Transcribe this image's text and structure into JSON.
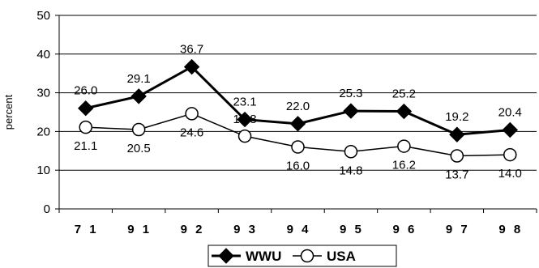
{
  "chart_data": {
    "type": "line",
    "title": "",
    "xlabel": "",
    "ylabel": "percent",
    "categories": [
      "7 1",
      "9 1",
      "9 2",
      "9 3",
      "9 4",
      "9 5",
      "9 6",
      "9 7",
      "9 8"
    ],
    "ylim": [
      0,
      50
    ],
    "yticks": [
      0,
      10,
      20,
      30,
      40,
      50
    ],
    "grid": true,
    "legend": "bottom",
    "series": [
      {
        "name": "WWU",
        "marker": "diamond-filled",
        "color": "#000000",
        "values": [
          26.0,
          29.1,
          36.7,
          23.1,
          22.0,
          25.3,
          25.2,
          19.2,
          20.4
        ],
        "labels": [
          "26.0",
          "29.1",
          "36.7",
          "23.1",
          "22.0",
          "25.3",
          "25.2",
          "19.2",
          "20.4"
        ]
      },
      {
        "name": "USA",
        "marker": "circle-open",
        "color": "#000000",
        "values": [
          21.1,
          20.5,
          24.6,
          18.8,
          16.0,
          14.8,
          16.2,
          13.7,
          14.0
        ],
        "labels": [
          "21.1",
          "20.5",
          "24.6",
          "18.8",
          "16.0",
          "14.8",
          "16.2",
          "13.7",
          "14.0"
        ]
      }
    ]
  }
}
